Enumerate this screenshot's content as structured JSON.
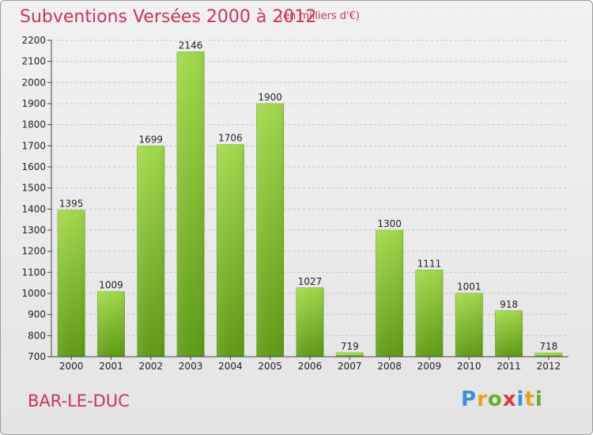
{
  "page": {
    "title": "Subventions Versées 2000 à 2012",
    "unit_note": "(en milliers d'€)",
    "city": "BAR-LE-DUC",
    "logo": {
      "letters": [
        "P",
        "r",
        "o",
        "x",
        "i",
        "t",
        "i"
      ],
      "colors": [
        "#3f8fd8",
        "#e8a020",
        "#5fb030",
        "#d83a3a",
        "#3f8fd8",
        "#e8a020",
        "#5fb030"
      ]
    }
  },
  "chart_data": {
    "type": "bar",
    "title": "Subventions Versées 2000 à 2012",
    "subtitle": "(en milliers d'€)",
    "categories": [
      "2000",
      "2001",
      "2002",
      "2003",
      "2004",
      "2005",
      "2006",
      "2007",
      "2008",
      "2009",
      "2010",
      "2011",
      "2012"
    ],
    "values": [
      1395,
      1009,
      1699,
      2146,
      1706,
      1900,
      1027,
      719,
      1300,
      1111,
      1001,
      918,
      718
    ],
    "ylim": [
      700,
      2200
    ],
    "yticks": [
      700,
      800,
      900,
      1000,
      1100,
      1200,
      1300,
      1400,
      1500,
      1600,
      1700,
      1800,
      1900,
      2000,
      2100,
      2200
    ],
    "grid": true,
    "bar_color": "#7cbc2c",
    "bar_highlight": "#9fd64a"
  }
}
